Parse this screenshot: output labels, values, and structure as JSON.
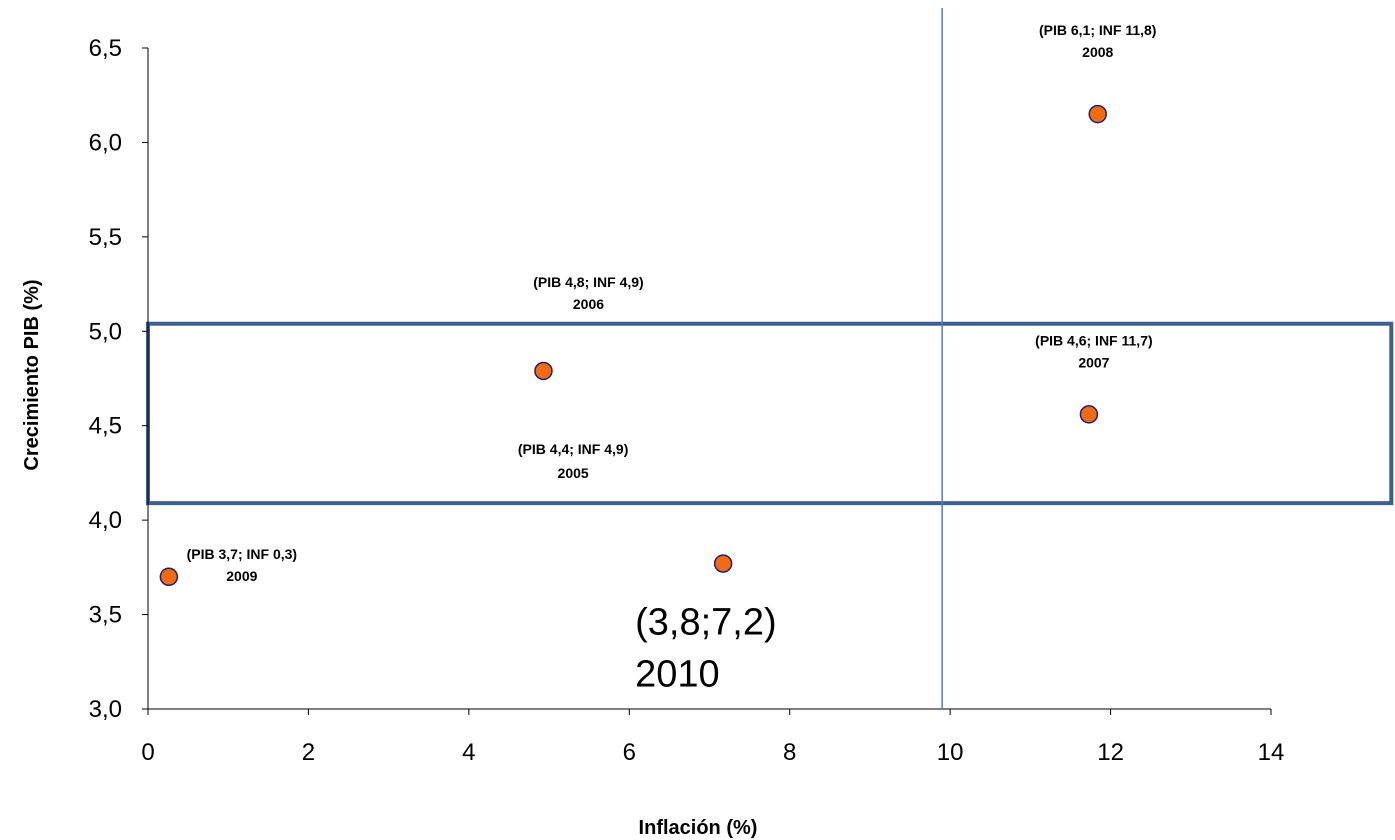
{
  "chart_data": {
    "type": "scatter",
    "title": "",
    "xlabel": "Inflación (%)",
    "ylabel": "Crecimiento PIB  (%)",
    "xlim": [
      0,
      14
    ],
    "ylim": [
      3.0,
      6.5
    ],
    "x_ticks": [
      "0",
      "2",
      "4",
      "6",
      "8",
      "10",
      "12",
      "14"
    ],
    "y_ticks": [
      "3,0",
      "3,5",
      "4,0",
      "4,5",
      "5,0",
      "5,5",
      "6,0",
      "6,5"
    ],
    "grid": false,
    "marker_color": "#f26b0f",
    "marker_edge_color": "#1f1f7a",
    "reference_line": {
      "x": 9.9,
      "color": "#4f81bd"
    },
    "highlight_box": {
      "x_range": [
        0,
        15.5
      ],
      "y_range": [
        4.09,
        5.04
      ],
      "color": "#3f5f8f"
    },
    "points": [
      {
        "x": 0.26,
        "y": 3.7,
        "label1": "(PIB 3,7; INF 0,3)",
        "label2": "2009"
      },
      {
        "x": 4.93,
        "y": 4.79,
        "label1": "(PIB 4,8; INF 4,9)",
        "label2": "2006"
      },
      {
        "x": 7.17,
        "y": 3.77,
        "label1": "(3,8;7,2)",
        "label2": "2010"
      },
      {
        "x": 11.73,
        "y": 4.56,
        "label1": "(PIB 4,6; INF 11,7)",
        "label2": "2007"
      },
      {
        "x": 11.84,
        "y": 6.15,
        "label1": "(PIB 6,1; INF 11,8)",
        "label2": "2008"
      }
    ],
    "annotations": [
      {
        "label1": "(PIB 4,4; INF 4,9)",
        "label2": "2005",
        "x": 5.3,
        "y": 4.35
      }
    ]
  }
}
